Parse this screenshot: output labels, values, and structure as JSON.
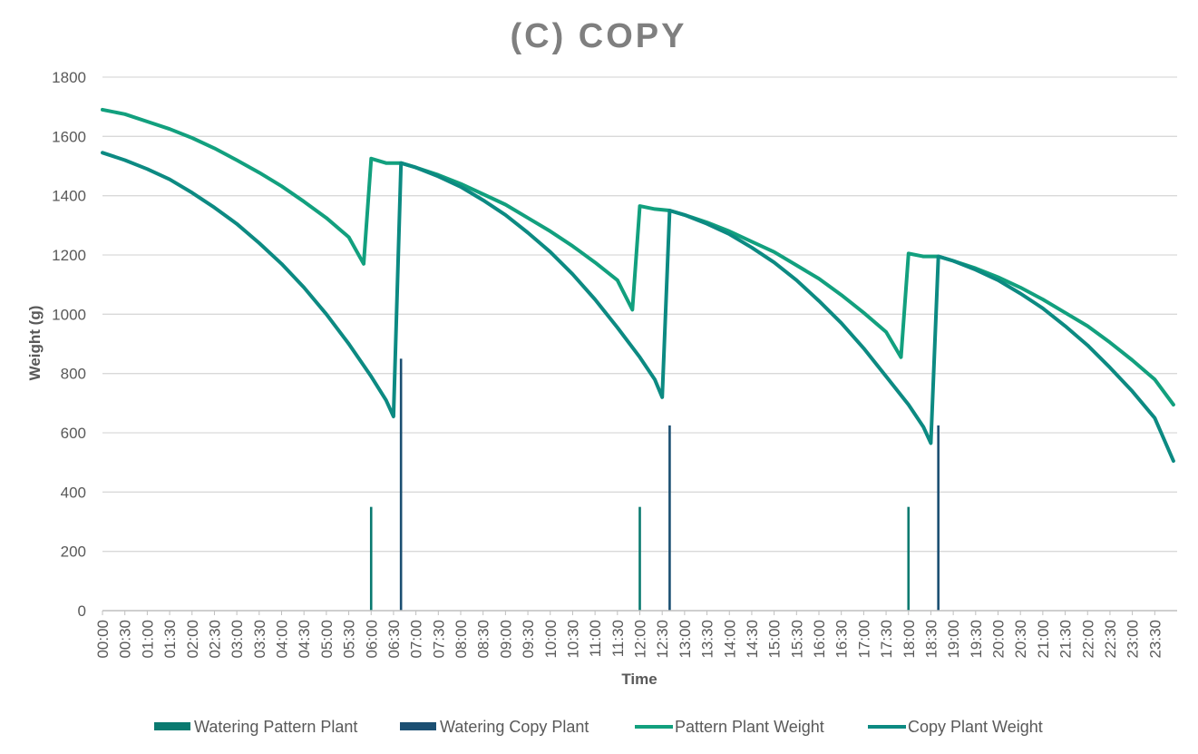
{
  "chart_data": {
    "type": "line",
    "title": "(C) COPY",
    "xlabel": "Time",
    "ylabel": "Weight (g)",
    "ylim": [
      0,
      1800
    ],
    "y_ticks": [
      0,
      200,
      400,
      600,
      800,
      1000,
      1200,
      1400,
      1600,
      1800
    ],
    "grid": true,
    "legend_position": "bottom",
    "x_tick_labels": [
      "00:00",
      "00:30",
      "01:00",
      "01:30",
      "02:00",
      "02:30",
      "03:00",
      "03:30",
      "04:00",
      "04:30",
      "05:00",
      "05:30",
      "06:00",
      "06:30",
      "07:00",
      "07:30",
      "08:00",
      "08:30",
      "09:00",
      "09:30",
      "10:00",
      "10:30",
      "11:00",
      "11:30",
      "12:00",
      "12:30",
      "13:00",
      "13:30",
      "14:00",
      "14:30",
      "15:00",
      "15:30",
      "16:00",
      "16:30",
      "17:00",
      "17:30",
      "18:00",
      "18:30",
      "19:00",
      "19:30",
      "20:00",
      "20:30",
      "21:00",
      "21:30",
      "22:00",
      "22:30",
      "23:00",
      "23:30"
    ],
    "series": [
      {
        "name": "Watering Pattern Plant",
        "kind": "bar",
        "color": "#0a7a70",
        "points": [
          [
            "06:00",
            350
          ],
          [
            "12:00",
            350
          ],
          [
            "18:00",
            350
          ]
        ]
      },
      {
        "name": "Watering Copy Plant",
        "kind": "bar",
        "color": "#1b4f72",
        "points": [
          [
            "06:40",
            850
          ],
          [
            "12:40",
            625
          ],
          [
            "18:40",
            625
          ]
        ]
      },
      {
        "name": "Pattern Plant Weight",
        "kind": "line",
        "color": "#12a07e",
        "points": [
          [
            "00:00",
            1690
          ],
          [
            "00:30",
            1675
          ],
          [
            "01:00",
            1650
          ],
          [
            "01:30",
            1625
          ],
          [
            "02:00",
            1595
          ],
          [
            "02:30",
            1560
          ],
          [
            "03:00",
            1520
          ],
          [
            "03:30",
            1478
          ],
          [
            "04:00",
            1432
          ],
          [
            "04:30",
            1380
          ],
          [
            "05:00",
            1325
          ],
          [
            "05:30",
            1260
          ],
          [
            "05:50",
            1170
          ],
          [
            "06:00",
            1525
          ],
          [
            "06:20",
            1510
          ],
          [
            "06:40",
            1510
          ],
          [
            "07:00",
            1495
          ],
          [
            "07:30",
            1470
          ],
          [
            "08:00",
            1440
          ],
          [
            "08:30",
            1405
          ],
          [
            "09:00",
            1370
          ],
          [
            "09:30",
            1325
          ],
          [
            "10:00",
            1280
          ],
          [
            "10:30",
            1230
          ],
          [
            "11:00",
            1175
          ],
          [
            "11:30",
            1115
          ],
          [
            "11:50",
            1015
          ],
          [
            "12:00",
            1365
          ],
          [
            "12:20",
            1355
          ],
          [
            "12:40",
            1350
          ],
          [
            "13:00",
            1335
          ],
          [
            "13:30",
            1310
          ],
          [
            "14:00",
            1280
          ],
          [
            "14:30",
            1245
          ],
          [
            "15:00",
            1210
          ],
          [
            "15:30",
            1165
          ],
          [
            "16:00",
            1120
          ],
          [
            "16:30",
            1065
          ],
          [
            "17:00",
            1005
          ],
          [
            "17:30",
            940
          ],
          [
            "17:50",
            855
          ],
          [
            "18:00",
            1205
          ],
          [
            "18:20",
            1195
          ],
          [
            "18:40",
            1195
          ],
          [
            "19:00",
            1180
          ],
          [
            "19:30",
            1155
          ],
          [
            "20:00",
            1125
          ],
          [
            "20:30",
            1090
          ],
          [
            "21:00",
            1050
          ],
          [
            "21:30",
            1005
          ],
          [
            "22:00",
            960
          ],
          [
            "22:30",
            905
          ],
          [
            "23:00",
            845
          ],
          [
            "23:30",
            780
          ],
          [
            "23:55",
            695
          ]
        ]
      },
      {
        "name": "Copy Plant Weight",
        "kind": "line",
        "color": "#0c8a82",
        "points": [
          [
            "00:00",
            1545
          ],
          [
            "00:30",
            1520
          ],
          [
            "01:00",
            1490
          ],
          [
            "01:30",
            1455
          ],
          [
            "02:00",
            1410
          ],
          [
            "02:30",
            1360
          ],
          [
            "03:00",
            1305
          ],
          [
            "03:30",
            1240
          ],
          [
            "04:00",
            1170
          ],
          [
            "04:30",
            1090
          ],
          [
            "05:00",
            1000
          ],
          [
            "05:30",
            900
          ],
          [
            "06:00",
            790
          ],
          [
            "06:20",
            710
          ],
          [
            "06:30",
            655
          ],
          [
            "06:40",
            1510
          ],
          [
            "07:00",
            1495
          ],
          [
            "07:30",
            1465
          ],
          [
            "08:00",
            1430
          ],
          [
            "08:30",
            1385
          ],
          [
            "09:00",
            1335
          ],
          [
            "09:30",
            1275
          ],
          [
            "10:00",
            1210
          ],
          [
            "10:30",
            1135
          ],
          [
            "11:00",
            1050
          ],
          [
            "11:30",
            955
          ],
          [
            "12:00",
            855
          ],
          [
            "12:20",
            780
          ],
          [
            "12:30",
            720
          ],
          [
            "12:40",
            1350
          ],
          [
            "13:00",
            1335
          ],
          [
            "13:30",
            1305
          ],
          [
            "14:00",
            1270
          ],
          [
            "14:30",
            1225
          ],
          [
            "15:00",
            1175
          ],
          [
            "15:30",
            1115
          ],
          [
            "16:00",
            1045
          ],
          [
            "16:30",
            970
          ],
          [
            "17:00",
            885
          ],
          [
            "17:30",
            790
          ],
          [
            "18:00",
            695
          ],
          [
            "18:20",
            620
          ],
          [
            "18:30",
            565
          ],
          [
            "18:40",
            1195
          ],
          [
            "19:00",
            1180
          ],
          [
            "19:30",
            1150
          ],
          [
            "20:00",
            1115
          ],
          [
            "20:30",
            1070
          ],
          [
            "21:00",
            1020
          ],
          [
            "21:30",
            960
          ],
          [
            "22:00",
            895
          ],
          [
            "22:30",
            820
          ],
          [
            "23:00",
            740
          ],
          [
            "23:30",
            650
          ],
          [
            "23:55",
            505
          ]
        ]
      }
    ]
  }
}
